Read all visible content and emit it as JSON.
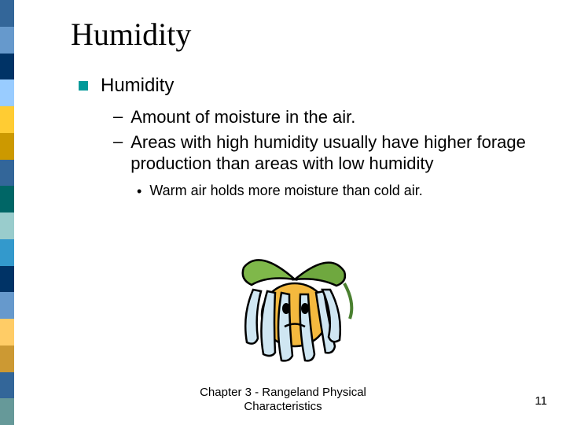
{
  "sidebar_colors": [
    "#336699",
    "#6699cc",
    "#003366",
    "#99ccff",
    "#ffcc33",
    "#cc9900",
    "#336699",
    "#006666",
    "#99cccc",
    "#3399cc",
    "#003366",
    "#6699cc",
    "#ffcc66",
    "#cc9933",
    "#336699",
    "#669999"
  ],
  "title": "Humidity",
  "bullet": {
    "label": "Humidity",
    "color": "#009999"
  },
  "sub_items": [
    "Amount of moisture in the air.",
    "Areas with high humidity usually have higher forage production than areas with low humidity"
  ],
  "subsub_items": [
    "Warm air holds more moisture than cold air."
  ],
  "image": {
    "alt": "wilted-plant-clipart"
  },
  "footer_line1": "Chapter 3 - Rangeland Physical",
  "footer_line2": "Characteristics",
  "page_number": "11"
}
